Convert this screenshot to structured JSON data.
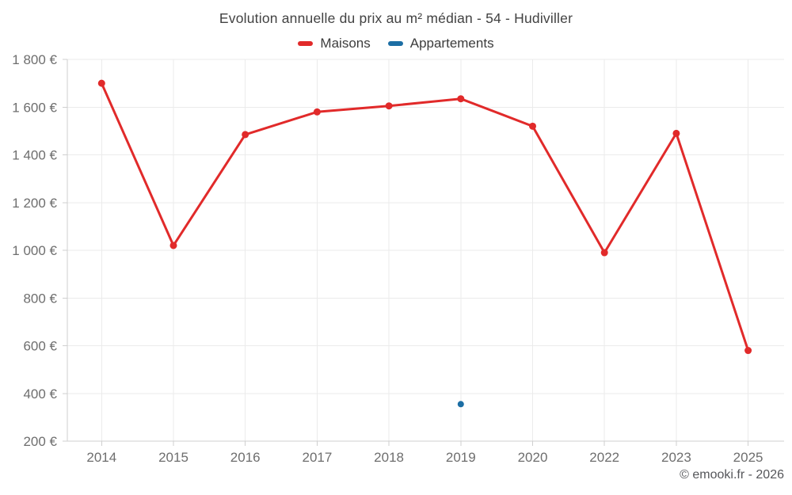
{
  "header": {
    "title": "Evolution annuelle du prix au m² médian - 54 - Hudiviller"
  },
  "legend": {
    "items": [
      {
        "label": "Maisons",
        "color": "#e12a2a"
      },
      {
        "label": "Appartements",
        "color": "#1c6ea4"
      }
    ]
  },
  "footer": {
    "attribution": "© emooki.fr - 2026"
  },
  "chart_data": {
    "type": "line",
    "title": "Evolution annuelle du prix au m² médian - 54 - Hudiviller",
    "categories": [
      "2014",
      "2015",
      "2016",
      "2017",
      "2018",
      "2019",
      "2020",
      "2022",
      "2023",
      "2025"
    ],
    "series": [
      {
        "name": "Maisons",
        "color": "#e12a2a",
        "line": true,
        "marker_radius": 4.5,
        "values": [
          1700,
          1020,
          1485,
          1580,
          1605,
          1635,
          1520,
          990,
          1490,
          580
        ]
      },
      {
        "name": "Appartements",
        "color": "#1c6ea4",
        "line": false,
        "marker_radius": 4,
        "values": [
          null,
          null,
          null,
          null,
          null,
          355,
          null,
          null,
          null,
          null
        ]
      }
    ],
    "xlabel": "",
    "ylabel": "",
    "ylim": [
      200,
      1800
    ],
    "y_tick_step": 200,
    "y_tick_labels": [
      "200 €",
      "400 €",
      "600 €",
      "800 €",
      "1 000 €",
      "1 200 €",
      "1 400 €",
      "1 600 €",
      "1 800 €"
    ],
    "grid": true,
    "legend_position": "top",
    "colors": {
      "grid": "#ebebeb",
      "axis": "#cfcfcf",
      "tick_text": "#6e6e6e",
      "title_text": "#424242"
    }
  }
}
